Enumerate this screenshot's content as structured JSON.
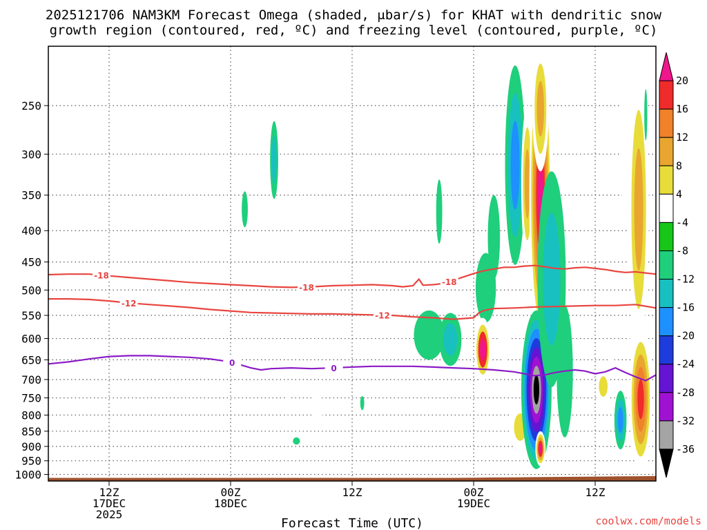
{
  "chart_data": {
    "type": "heatmap",
    "title_line1": "2025121706 NAM3KM Forecast Omega (shaded, μbar/s) for KHAT with dendritic snow",
    "title_line2": "growth region (contoured, red, ºC) and freezing level (contoured, purple, ºC)",
    "xlabel": "Forecast Time (UTC)",
    "x_ticks": [
      {
        "label": "12Z",
        "label2": "17DEC",
        "label3": "2025",
        "hours_from_init": 6
      },
      {
        "label": "00Z",
        "label2": "18DEC",
        "label3": "",
        "hours_from_init": 18
      },
      {
        "label": "12Z",
        "label2": "",
        "label3": "",
        "hours_from_init": 30
      },
      {
        "label": "00Z",
        "label2": "19DEC",
        "label3": "",
        "hours_from_init": 42
      },
      {
        "label": "12Z",
        "label2": "",
        "label3": "",
        "hours_from_init": 54
      }
    ],
    "xlim": [
      0,
      60
    ],
    "y_levels": [
      250,
      300,
      350,
      400,
      450,
      500,
      550,
      600,
      650,
      700,
      750,
      800,
      850,
      900,
      950,
      1000
    ],
    "ylim": [
      1025,
      200
    ],
    "colorbar": {
      "labels": [
        "20",
        "16",
        "12",
        "8",
        "4",
        "-4",
        "-8",
        "-12",
        "-16",
        "-20",
        "-24",
        "-28",
        "-32",
        "-36"
      ],
      "bins": [
        {
          "color": "#f0168c"
        },
        {
          "color": "#ef2b2b"
        },
        {
          "color": "#f0822b"
        },
        {
          "color": "#e8a630"
        },
        {
          "color": "#e8dc3a"
        },
        {
          "color": "#ffffff"
        },
        {
          "color": "#18c61a"
        },
        {
          "color": "#1fcf7c"
        },
        {
          "color": "#18c0c0"
        },
        {
          "color": "#1e90ff"
        },
        {
          "color": "#1e3cdc"
        },
        {
          "color": "#6414d2"
        },
        {
          "color": "#a012d2"
        },
        {
          "color": "#a4a4a4"
        },
        {
          "color": "#000000"
        }
      ]
    },
    "contours": [
      {
        "label": "-18",
        "color": "#e8443f",
        "label_at": [
          [
            0.0875,
            0
          ],
          [
            0.425,
            0
          ],
          [
            0.66,
            1
          ]
        ],
        "points": [
          [
            0,
            472
          ],
          [
            2,
            471
          ],
          [
            4,
            471
          ],
          [
            6,
            474
          ],
          [
            8,
            477
          ],
          [
            10,
            480
          ],
          [
            12,
            483
          ],
          [
            14,
            486
          ],
          [
            16,
            488
          ],
          [
            18,
            490
          ],
          [
            20,
            492
          ],
          [
            22,
            494
          ],
          [
            24,
            495
          ],
          [
            26,
            494
          ],
          [
            28,
            492
          ],
          [
            30,
            491
          ],
          [
            32,
            490
          ],
          [
            34,
            492
          ],
          [
            35,
            494
          ],
          [
            36,
            492
          ],
          [
            36.6,
            480
          ],
          [
            37,
            491
          ],
          [
            38,
            490
          ],
          [
            39,
            488
          ],
          [
            40,
            482
          ],
          [
            41,
            476
          ],
          [
            42,
            470
          ],
          [
            43,
            465
          ],
          [
            44,
            462
          ],
          [
            45,
            459
          ],
          [
            46,
            459
          ],
          [
            47,
            457
          ],
          [
            48,
            456
          ],
          [
            49,
            458
          ],
          [
            50,
            461
          ],
          [
            51,
            462
          ],
          [
            52,
            460
          ],
          [
            53,
            459
          ],
          [
            54,
            461
          ],
          [
            55,
            463
          ],
          [
            56,
            466
          ],
          [
            57,
            468
          ],
          [
            58,
            467
          ],
          [
            59,
            469
          ],
          [
            60,
            471
          ]
        ]
      },
      {
        "label": "-12",
        "color": "#e8443f",
        "label_at": [
          [
            0.1325,
            0
          ],
          [
            0.55,
            0
          ]
        ],
        "points": [
          [
            0,
            517
          ],
          [
            2,
            517
          ],
          [
            4,
            518
          ],
          [
            6,
            521
          ],
          [
            8,
            525
          ],
          [
            10,
            528
          ],
          [
            12,
            531
          ],
          [
            14,
            534
          ],
          [
            16,
            538
          ],
          [
            18,
            541
          ],
          [
            20,
            544
          ],
          [
            22,
            545
          ],
          [
            24,
            546
          ],
          [
            26,
            547
          ],
          [
            28,
            547
          ],
          [
            30,
            548
          ],
          [
            32,
            549
          ],
          [
            34,
            550
          ],
          [
            36,
            553
          ],
          [
            38,
            555
          ],
          [
            40,
            558
          ],
          [
            42,
            555
          ],
          [
            42.5,
            545
          ],
          [
            43,
            540
          ],
          [
            44,
            536
          ],
          [
            46,
            535
          ],
          [
            48,
            533
          ],
          [
            50,
            532
          ],
          [
            52,
            531
          ],
          [
            54,
            530
          ],
          [
            56,
            530
          ],
          [
            58,
            528
          ],
          [
            60,
            535
          ]
        ]
      },
      {
        "label": "0",
        "color": "#8b1ac6",
        "label_at": [
          [
            0.3025,
            0
          ],
          [
            0.47,
            0
          ]
        ],
        "points": [
          [
            0,
            660
          ],
          [
            2,
            655
          ],
          [
            4,
            648
          ],
          [
            6,
            642
          ],
          [
            8,
            640
          ],
          [
            10,
            640
          ],
          [
            12,
            642
          ],
          [
            14,
            644
          ],
          [
            16,
            648
          ],
          [
            18,
            655
          ],
          [
            20,
            670
          ],
          [
            21,
            675
          ],
          [
            22,
            672
          ],
          [
            24,
            670
          ],
          [
            26,
            672
          ],
          [
            28,
            670
          ],
          [
            30,
            668
          ],
          [
            32,
            666
          ],
          [
            34,
            666
          ],
          [
            36,
            666
          ],
          [
            38,
            668
          ],
          [
            40,
            670
          ],
          [
            42,
            672
          ],
          [
            44,
            675
          ],
          [
            46,
            680
          ],
          [
            47,
            685
          ],
          [
            48,
            690
          ],
          [
            49,
            688
          ],
          [
            50,
            682
          ],
          [
            51,
            678
          ],
          [
            52,
            675
          ],
          [
            53,
            678
          ],
          [
            54,
            685
          ],
          [
            55,
            680
          ],
          [
            56,
            670
          ],
          [
            57,
            682
          ],
          [
            58,
            693
          ],
          [
            59,
            703
          ],
          [
            60,
            688
          ]
        ]
      }
    ],
    "blobs": [
      {
        "x": 22.3,
        "y": 310,
        "w": 0.4,
        "h": 45,
        "bins": [
          7,
          8
        ]
      },
      {
        "x": 19.4,
        "y": 370,
        "w": 0.3,
        "h": 25,
        "bins": [
          7
        ]
      },
      {
        "x": 24.3,
        "y": 400,
        "w": 0.15,
        "h": 25,
        "bins": [
          5
        ]
      },
      {
        "x": 38.6,
        "y": 375,
        "w": 0.3,
        "h": 45,
        "bins": [
          7
        ]
      },
      {
        "x": 23.8,
        "y": 760,
        "w": 0.2,
        "h": 45,
        "bins": [
          5
        ]
      },
      {
        "x": 26.6,
        "y": 780,
        "w": 0.5,
        "h": 50,
        "bins": [
          5
        ]
      },
      {
        "x": 24.5,
        "y": 882,
        "w": 0.35,
        "h": 12,
        "bins": [
          7
        ]
      },
      {
        "x": 31.0,
        "y": 765,
        "w": 0.2,
        "h": 20,
        "bins": [
          7
        ]
      },
      {
        "x": 37.6,
        "y": 595,
        "w": 1.5,
        "h": 55,
        "bins": [
          7
        ]
      },
      {
        "x": 39.7,
        "y": 605,
        "w": 1.1,
        "h": 60,
        "bins": [
          7,
          8
        ]
      },
      {
        "x": 43.2,
        "y": 500,
        "w": 1.0,
        "h": 65,
        "bins": [
          7
        ]
      },
      {
        "x": 42.9,
        "y": 630,
        "w": 0.8,
        "h": 75,
        "bins": [
          5,
          4,
          1,
          0
        ]
      },
      {
        "x": 44.0,
        "y": 415,
        "w": 0.6,
        "h": 65,
        "bins": [
          7
        ]
      },
      {
        "x": 45.1,
        "y": 610,
        "w": 0.6,
        "h": 45,
        "bins": [
          5
        ]
      },
      {
        "x": 46.1,
        "y": 335,
        "w": 1.0,
        "h": 120,
        "bins": [
          7,
          8,
          9
        ]
      },
      {
        "x": 47.3,
        "y": 350,
        "w": 0.6,
        "h": 100,
        "bins": [
          5,
          4,
          3
        ]
      },
      {
        "x": 46.6,
        "y": 840,
        "w": 1.0,
        "h": 70,
        "bins": [
          5,
          4
        ]
      },
      {
        "x": 48.6,
        "y": 360,
        "w": 1.1,
        "h": 250,
        "bins": [
          5,
          4,
          3,
          2,
          1,
          0
        ]
      },
      {
        "x": 48.6,
        "y": 260,
        "w": 0.8,
        "h": 60,
        "bins": [
          5,
          4,
          3
        ]
      },
      {
        "x": 48.2,
        "y": 760,
        "w": 1.5,
        "h": 220,
        "bins": [
          7,
          8,
          9,
          10,
          11,
          12,
          13,
          14
        ]
      },
      {
        "x": 49.7,
        "y": 520,
        "w": 1.4,
        "h": 200,
        "bins": [
          7,
          8
        ]
      },
      {
        "x": 51.0,
        "y": 700,
        "w": 0.8,
        "h": 170,
        "bins": [
          7
        ]
      },
      {
        "x": 48.6,
        "y": 910,
        "w": 0.5,
        "h": 60,
        "bins": [
          5,
          4,
          3,
          1,
          0
        ]
      },
      {
        "x": 54.8,
        "y": 720,
        "w": 0.7,
        "h": 45,
        "bins": [
          5,
          4
        ]
      },
      {
        "x": 55.6,
        "y": 650,
        "w": 0.3,
        "h": 30,
        "bins": [
          5
        ]
      },
      {
        "x": 56.5,
        "y": 820,
        "w": 0.6,
        "h": 90,
        "bins": [
          7,
          8,
          9
        ]
      },
      {
        "x": 57.1,
        "y": 300,
        "w": 0.6,
        "h": 85,
        "bins": [
          5
        ]
      },
      {
        "x": 58.3,
        "y": 420,
        "w": 1.0,
        "h": 200,
        "bins": [
          5,
          4,
          3
        ]
      },
      {
        "x": 58.5,
        "y": 780,
        "w": 1.1,
        "h": 200,
        "bins": [
          5,
          4,
          3,
          2,
          1
        ]
      },
      {
        "x": 59.0,
        "y": 260,
        "w": 0.15,
        "h": 25,
        "bins": [
          7
        ]
      },
      {
        "x": 57.7,
        "y": 590,
        "w": 0.3,
        "h": 40,
        "bins": [
          5
        ]
      }
    ]
  },
  "credit": "coolwx.com/models"
}
